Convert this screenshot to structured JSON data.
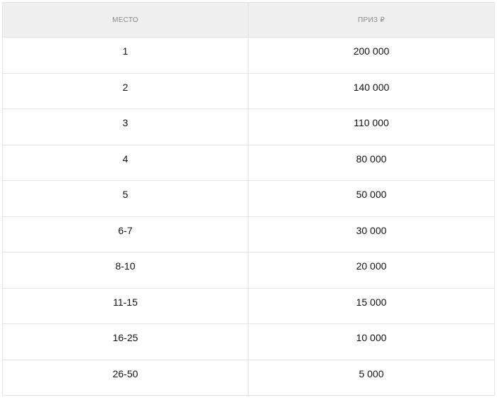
{
  "table": {
    "headers": [
      "МЕСТО",
      "ПРИЗ ₽"
    ],
    "rows": [
      [
        "1",
        "200 000"
      ],
      [
        "2",
        "140 000"
      ],
      [
        "3",
        "110 000"
      ],
      [
        "4",
        "80 000"
      ],
      [
        "5",
        "50 000"
      ],
      [
        "6-7",
        "30 000"
      ],
      [
        "8-10",
        "20 000"
      ],
      [
        "11-15",
        "15 000"
      ],
      [
        "16-25",
        "10 000"
      ],
      [
        "26-50",
        "5 000"
      ]
    ]
  }
}
